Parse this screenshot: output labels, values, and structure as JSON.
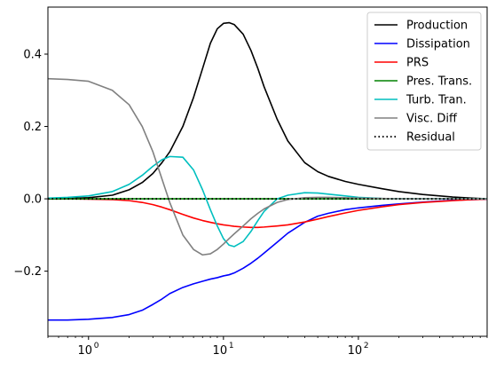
{
  "chart_data": {
    "type": "line",
    "title": "",
    "xlabel": "",
    "ylabel": "",
    "xscale": "log",
    "xlim": [
      0.5,
      900
    ],
    "ylim": [
      -0.38,
      0.53
    ],
    "grid": false,
    "legend_position": "top-right",
    "x_ticks": [
      {
        "value": 1,
        "label": "10",
        "sup": "0"
      },
      {
        "value": 10,
        "label": "10",
        "sup": "1"
      },
      {
        "value": 100,
        "label": "10",
        "sup": "2"
      }
    ],
    "y_ticks": [
      {
        "value": 0.4,
        "label": "0.4"
      },
      {
        "value": 0.2,
        "label": "0.2"
      },
      {
        "value": 0.0,
        "label": "0.0"
      },
      {
        "value": -0.2,
        "label": "−0.2"
      }
    ],
    "x": [
      0.5,
      0.7,
      1,
      1.5,
      2,
      2.5,
      3,
      3.5,
      4,
      5,
      6,
      7,
      8,
      9,
      10,
      11,
      12,
      14,
      16,
      18,
      20,
      25,
      30,
      40,
      50,
      60,
      80,
      100,
      150,
      200,
      300,
      500,
      700,
      900
    ],
    "series": [
      {
        "name": "Production",
        "color": "#000000",
        "dash": "solid",
        "values": [
          0.0,
          0.001,
          0.003,
          0.01,
          0.025,
          0.045,
          0.07,
          0.1,
          0.13,
          0.2,
          0.28,
          0.36,
          0.43,
          0.47,
          0.485,
          0.487,
          0.482,
          0.455,
          0.41,
          0.36,
          0.31,
          0.22,
          0.16,
          0.1,
          0.075,
          0.062,
          0.048,
          0.04,
          0.028,
          0.02,
          0.012,
          0.005,
          0.002,
          0.0
        ]
      },
      {
        "name": "Dissipation",
        "color": "#0000ff",
        "dash": "solid",
        "values": [
          -0.335,
          -0.335,
          -0.333,
          -0.328,
          -0.32,
          -0.308,
          -0.292,
          -0.277,
          -0.262,
          -0.245,
          -0.235,
          -0.228,
          -0.222,
          -0.218,
          -0.213,
          -0.21,
          -0.205,
          -0.192,
          -0.178,
          -0.164,
          -0.15,
          -0.12,
          -0.095,
          -0.065,
          -0.048,
          -0.04,
          -0.03,
          -0.025,
          -0.018,
          -0.014,
          -0.009,
          -0.004,
          -0.002,
          -0.001
        ]
      },
      {
        "name": "PRS",
        "color": "#ff0000",
        "dash": "solid",
        "values": [
          0.0,
          0.0,
          -0.001,
          -0.002,
          -0.005,
          -0.01,
          -0.016,
          -0.023,
          -0.03,
          -0.043,
          -0.053,
          -0.06,
          -0.065,
          -0.069,
          -0.072,
          -0.074,
          -0.076,
          -0.078,
          -0.079,
          -0.079,
          -0.078,
          -0.075,
          -0.072,
          -0.064,
          -0.056,
          -0.049,
          -0.039,
          -0.032,
          -0.022,
          -0.016,
          -0.01,
          -0.005,
          -0.002,
          -0.001
        ]
      },
      {
        "name": "Pres. Trans.",
        "color": "#008000",
        "dash": "solid",
        "values": [
          0.0,
          0.0,
          0.0,
          0.0,
          0.0,
          0.0,
          0.0,
          0.0,
          0.0,
          0.0,
          0.0,
          0.0,
          0.0,
          0.0,
          0.0,
          0.0,
          0.0,
          0.0,
          0.0,
          0.0,
          0.0,
          0.0,
          0.0,
          0.0,
          0.0,
          0.0,
          0.0,
          0.0,
          0.0,
          0.0,
          0.0,
          0.0,
          0.0,
          0.0
        ]
      },
      {
        "name": "Turb. Tran.",
        "color": "#00bfbf",
        "dash": "solid",
        "values": [
          0.002,
          0.004,
          0.008,
          0.02,
          0.04,
          0.065,
          0.09,
          0.108,
          0.117,
          0.115,
          0.08,
          0.025,
          -0.03,
          -0.075,
          -0.11,
          -0.128,
          -0.132,
          -0.118,
          -0.09,
          -0.06,
          -0.035,
          0.0,
          0.01,
          0.017,
          0.016,
          0.013,
          0.008,
          0.004,
          0.001,
          0.0,
          0.0,
          0.0,
          0.0,
          0.0
        ]
      },
      {
        "name": "Visc. Diff",
        "color": "#808080",
        "dash": "solid",
        "values": [
          0.332,
          0.33,
          0.325,
          0.3,
          0.26,
          0.2,
          0.13,
          0.055,
          -0.01,
          -0.1,
          -0.14,
          -0.155,
          -0.152,
          -0.14,
          -0.125,
          -0.11,
          -0.097,
          -0.075,
          -0.055,
          -0.04,
          -0.028,
          -0.01,
          -0.002,
          0.003,
          0.004,
          0.004,
          0.003,
          0.002,
          0.001,
          0.0,
          0.0,
          0.0,
          0.0,
          0.0
        ]
      },
      {
        "name": "Residual",
        "color": "#000000",
        "dash": "dotted",
        "values": [
          0.0,
          0.0,
          0.0,
          0.0,
          0.0,
          0.0,
          0.0,
          0.0,
          0.0,
          0.0,
          0.0,
          0.0,
          0.0,
          0.0,
          0.0,
          0.0,
          0.0,
          0.0,
          0.0,
          0.0,
          0.0,
          0.0,
          0.0,
          0.0,
          0.0,
          0.0,
          0.0,
          0.0,
          0.0,
          0.0,
          0.0,
          0.0,
          0.0,
          0.0
        ]
      }
    ]
  }
}
